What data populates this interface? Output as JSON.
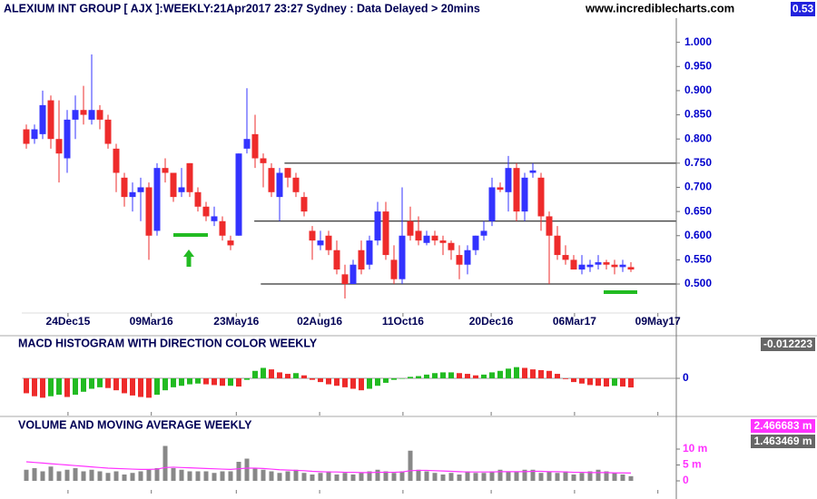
{
  "chart_data": [
    {
      "type": "candlestick",
      "title": "ALEXIUM INT GROUP [ AJX ]:WEEKLY:21Apr2017 23:27 Sydney : Data Delayed > 20mins",
      "source": "www.incrediblecharts.com",
      "up_color": "#3333ff",
      "down_color": "#ee2b2b",
      "xlim": [
        -0.5,
        79.5
      ],
      "ylim": [
        0.44,
        1.05
      ],
      "xticks": [
        {
          "value": 5.1,
          "label": "24Dec15"
        },
        {
          "value": 15.3,
          "label": "09Mar16"
        },
        {
          "value": 25.7,
          "label": "23May16"
        },
        {
          "value": 35.9,
          "label": "02Aug16"
        },
        {
          "value": 46.1,
          "label": "11Oct16"
        },
        {
          "value": 56.9,
          "label": "20Dec16"
        },
        {
          "value": 67.1,
          "label": "06Mar17"
        },
        {
          "value": 77.3,
          "label": "09May17"
        }
      ],
      "yticks": [
        {
          "value": 1.0,
          "label": "1.000"
        },
        {
          "value": 0.95,
          "label": "0.950"
        },
        {
          "value": 0.9,
          "label": "0.900"
        },
        {
          "value": 0.85,
          "label": "0.850"
        },
        {
          "value": 0.8,
          "label": "0.800"
        },
        {
          "value": 0.75,
          "label": "0.750"
        },
        {
          "value": 0.7,
          "label": "0.700"
        },
        {
          "value": 0.65,
          "label": "0.650"
        },
        {
          "value": 0.6,
          "label": "0.600"
        },
        {
          "value": 0.55,
          "label": "0.550"
        },
        {
          "value": 0.5,
          "label": "0.500"
        }
      ],
      "levels": [
        {
          "value": 0.75,
          "start": 31.6
        },
        {
          "value": 0.63,
          "start": 27.9
        },
        {
          "value": 0.5,
          "start": 28.7
        }
      ],
      "open": [
        0.82,
        0.8,
        0.81,
        0.88,
        0.8,
        0.76,
        0.84,
        0.86,
        0.84,
        0.86,
        0.84,
        0.78,
        0.72,
        0.68,
        0.69,
        0.7,
        0.61,
        0.74,
        0.73,
        0.69,
        0.75,
        0.69,
        0.66,
        0.63,
        0.63,
        0.59,
        0.6,
        0.78,
        0.81,
        0.76,
        0.74,
        0.68,
        0.74,
        0.72,
        0.68,
        0.61,
        0.58,
        0.6,
        0.57,
        0.52,
        0.5,
        0.57,
        0.54,
        0.59,
        0.65,
        0.55,
        0.51,
        0.63,
        0.61,
        0.585,
        0.6,
        0.59,
        0.585,
        0.56,
        0.54,
        0.57,
        0.6,
        0.63,
        0.7,
        0.69,
        0.74,
        0.65,
        0.73,
        0.72,
        0.64,
        0.6,
        0.56,
        0.55,
        0.53,
        0.535,
        0.54,
        0.545,
        0.54,
        0.535,
        0.535
      ],
      "high": [
        0.83,
        0.83,
        0.9,
        0.89,
        0.88,
        0.86,
        0.89,
        0.91,
        0.975,
        0.87,
        0.85,
        0.79,
        0.73,
        0.71,
        0.72,
        0.71,
        0.75,
        0.76,
        0.73,
        0.74,
        0.75,
        0.7,
        0.67,
        0.66,
        0.64,
        0.6,
        0.77,
        0.905,
        0.85,
        0.77,
        0.75,
        0.74,
        0.74,
        0.73,
        0.69,
        0.62,
        0.61,
        0.61,
        0.59,
        0.54,
        0.55,
        0.59,
        0.6,
        0.67,
        0.67,
        0.58,
        0.7,
        0.66,
        0.64,
        0.61,
        0.61,
        0.6,
        0.59,
        0.58,
        0.58,
        0.6,
        0.63,
        0.72,
        0.71,
        0.765,
        0.75,
        0.73,
        0.75,
        0.73,
        0.65,
        0.62,
        0.58,
        0.56,
        0.56,
        0.55,
        0.56,
        0.55,
        0.55,
        0.55,
        0.545
      ],
      "low": [
        0.78,
        0.79,
        0.8,
        0.78,
        0.71,
        0.73,
        0.8,
        0.83,
        0.83,
        0.82,
        0.78,
        0.69,
        0.66,
        0.65,
        0.63,
        0.55,
        0.6,
        0.71,
        0.67,
        0.68,
        0.68,
        0.65,
        0.63,
        0.62,
        0.59,
        0.57,
        0.6,
        0.77,
        0.74,
        0.7,
        0.68,
        0.63,
        0.7,
        0.68,
        0.64,
        0.55,
        0.57,
        0.56,
        0.52,
        0.47,
        0.5,
        0.52,
        0.53,
        0.58,
        0.55,
        0.5,
        0.5,
        0.59,
        0.58,
        0.58,
        0.58,
        0.56,
        0.55,
        0.51,
        0.52,
        0.56,
        0.59,
        0.62,
        0.69,
        0.65,
        0.63,
        0.63,
        0.72,
        0.61,
        0.5,
        0.55,
        0.54,
        0.53,
        0.52,
        0.525,
        0.53,
        0.53,
        0.52,
        0.525,
        0.525
      ],
      "close": [
        0.79,
        0.82,
        0.87,
        0.8,
        0.77,
        0.84,
        0.86,
        0.85,
        0.86,
        0.84,
        0.79,
        0.73,
        0.68,
        0.69,
        0.7,
        0.6,
        0.74,
        0.73,
        0.68,
        0.7,
        0.69,
        0.66,
        0.64,
        0.64,
        0.6,
        0.58,
        0.77,
        0.8,
        0.76,
        0.75,
        0.69,
        0.73,
        0.72,
        0.69,
        0.65,
        0.59,
        0.59,
        0.57,
        0.53,
        0.5,
        0.54,
        0.53,
        0.59,
        0.65,
        0.56,
        0.51,
        0.6,
        0.6,
        0.59,
        0.6,
        0.59,
        0.585,
        0.57,
        0.54,
        0.57,
        0.6,
        0.61,
        0.7,
        0.695,
        0.74,
        0.65,
        0.72,
        0.735,
        0.64,
        0.6,
        0.56,
        0.55,
        0.53,
        0.54,
        0.54,
        0.545,
        0.54,
        0.535,
        0.54,
        0.53
      ]
    },
    {
      "type": "bar",
      "title": "MACD HISTOGRAM WITH DIRECTION COLOR WEEKLY",
      "up_color": "#22bb22",
      "down_color": "#ee2b2b",
      "ylim": [
        -0.045,
        0.045
      ],
      "yticks": [
        0
      ],
      "values": [
        -0.02,
        -0.024,
        -0.026,
        -0.024,
        -0.022,
        -0.025,
        -0.022,
        -0.018,
        -0.014,
        -0.012,
        -0.013,
        -0.016,
        -0.02,
        -0.023,
        -0.025,
        -0.026,
        -0.022,
        -0.016,
        -0.012,
        -0.01,
        -0.008,
        -0.007,
        -0.008,
        -0.009,
        -0.01,
        -0.01,
        -0.011,
        -0.002,
        0.01,
        0.014,
        0.012,
        0.008,
        0.006,
        0.007,
        0.004,
        -0.002,
        -0.005,
        -0.008,
        -0.01,
        -0.012,
        -0.014,
        -0.016,
        -0.014,
        -0.01,
        -0.006,
        -0.002,
        0.0,
        0.002,
        0.003,
        0.005,
        0.007,
        0.008,
        0.008,
        0.007,
        0.006,
        0.004,
        0.005,
        0.008,
        0.01,
        0.013,
        0.015,
        0.014,
        0.012,
        0.011,
        0.01,
        0.006,
        -0.001,
        -0.005,
        -0.007,
        -0.009,
        -0.01,
        -0.011,
        -0.01,
        -0.011,
        -0.012223
      ]
    },
    {
      "type": "bar",
      "title": "VOLUME AND MOVING AVERAGE WEEKLY",
      "ylim": [
        0,
        13
      ],
      "yticks": [
        {
          "value": 10,
          "label": "10 m"
        },
        {
          "value": 5,
          "label": "5 m"
        },
        0
      ],
      "volume": {
        "color": "#888888",
        "last_label": "1.463469 m",
        "values": [
          3.5,
          4,
          3,
          4.5,
          3,
          3.5,
          4,
          3,
          3.5,
          3,
          2.5,
          3,
          2,
          2.5,
          3,
          3.5,
          4,
          11,
          4,
          3.5,
          3,
          3,
          3,
          2.5,
          3,
          3,
          6,
          7,
          4,
          3.5,
          3,
          2.5,
          3,
          3.5,
          2.5,
          2,
          2.5,
          3,
          2,
          2.5,
          2,
          2.5,
          3,
          3.5,
          3,
          2.5,
          3,
          9.5,
          3.5,
          3,
          2.5,
          2,
          2.5,
          2,
          3,
          2.5,
          2.5,
          3,
          3.5,
          3,
          3,
          3.5,
          3.5,
          2.5,
          3,
          2.5,
          3,
          2,
          2.5,
          3,
          3.5,
          3,
          2.5,
          2,
          1.463469
        ]
      },
      "moving_average": {
        "color": "#ff33ff",
        "last_label": "2.466683 m",
        "values": [
          6,
          5.8,
          5.6,
          5.4,
          5.2,
          5,
          4.8,
          4.6,
          4.4,
          4.2,
          4,
          3.9,
          3.8,
          3.7,
          3.6,
          3.6,
          3.7,
          4.2,
          4.3,
          4.2,
          4.1,
          4,
          3.9,
          3.8,
          3.7,
          3.6,
          3.8,
          4,
          4,
          3.9,
          3.7,
          3.5,
          3.4,
          3.3,
          3.2,
          3,
          2.9,
          2.8,
          2.8,
          2.7,
          2.7,
          2.6,
          2.6,
          2.7,
          2.7,
          2.7,
          2.8,
          3.2,
          3.3,
          3.3,
          3.2,
          3.1,
          3,
          2.9,
          2.8,
          2.8,
          2.8,
          2.8,
          2.9,
          2.9,
          2.9,
          2.9,
          3,
          3,
          2.9,
          2.9,
          2.8,
          2.7,
          2.7,
          2.6,
          2.6,
          2.6,
          2.5,
          2.5,
          2.466683
        ]
      }
    }
  ]
}
